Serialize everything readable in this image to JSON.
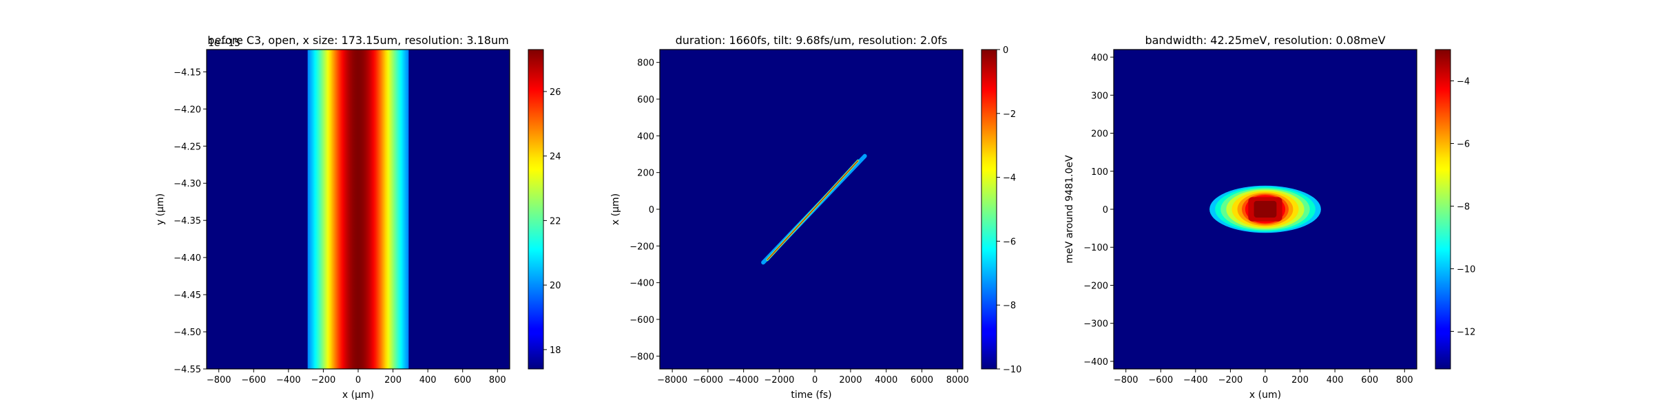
{
  "chart_data": [
    {
      "type": "heatmap",
      "title": "before C3, open, x size: 173.15um, resolution: 3.18um",
      "xlabel": "x (μm)",
      "ylabel": "y (μm)",
      "offset_text": "1e−15",
      "xlim": [
        -870,
        870
      ],
      "ylim": [
        -4.55,
        -4.12
      ],
      "xticks": [
        -800,
        -600,
        -400,
        -200,
        0,
        200,
        400,
        600,
        800
      ],
      "xtick_labels": [
        "−800",
        "−600",
        "−400",
        "−200",
        "0",
        "200",
        "400",
        "600",
        "800"
      ],
      "yticks": [
        -4.55,
        -4.5,
        -4.45,
        -4.4,
        -4.35,
        -4.3,
        -4.25,
        -4.2,
        -4.15
      ],
      "ytick_labels": [
        "−4.55",
        "−4.50",
        "−4.45",
        "−4.40",
        "−4.35",
        "−4.30",
        "−4.25",
        "−4.20",
        "−4.15"
      ],
      "colorbar": {
        "vmin": 17.4,
        "vmax": 27.3,
        "ticks": [
          18,
          20,
          22,
          24,
          26
        ],
        "tick_labels": [
          "18",
          "20",
          "22",
          "24",
          "26"
        ]
      },
      "pattern": {
        "kind": "vertical_band",
        "center": 0,
        "sigma": 175,
        "floor_value": 17.4,
        "peak_value": 27.3,
        "cutoff": 290
      }
    },
    {
      "type": "heatmap",
      "title": "duration: 1660fs, tilt: 9.68fs/um, resolution: 2.0fs",
      "xlabel": "time (fs)",
      "ylabel": "x (μm)",
      "xlim": [
        -8700,
        8300
      ],
      "ylim": [
        -870,
        870
      ],
      "xticks": [
        -8000,
        -6000,
        -4000,
        -2000,
        0,
        2000,
        4000,
        6000,
        8000
      ],
      "xtick_labels": [
        "−8000",
        "−6000",
        "−4000",
        "−2000",
        "0",
        "2000",
        "4000",
        "6000",
        "8000"
      ],
      "yticks": [
        -800,
        -600,
        -400,
        -200,
        0,
        200,
        400,
        600,
        800
      ],
      "ytick_labels": [
        "−800",
        "−600",
        "−400",
        "−200",
        "0",
        "200",
        "400",
        "600",
        "800"
      ],
      "colorbar": {
        "vmin": -10,
        "vmax": 0,
        "ticks": [
          -10,
          -8,
          -6,
          -4,
          -2,
          0
        ],
        "tick_labels": [
          "−10",
          "−8",
          "−6",
          "−4",
          "−2",
          "0"
        ]
      },
      "pattern": {
        "kind": "tilted_streak",
        "start": [
          -2900,
          -290
        ],
        "end": [
          2800,
          290
        ]
      }
    },
    {
      "type": "heatmap",
      "title": "bandwidth: 42.25meV, resolution: 0.08meV",
      "xlabel": "x (um)",
      "ylabel": "meV around 9481.0eV",
      "xlim": [
        -870,
        870
      ],
      "ylim": [
        -420,
        420
      ],
      "xticks": [
        -800,
        -600,
        -400,
        -200,
        0,
        200,
        400,
        600,
        800
      ],
      "xtick_labels": [
        "−800",
        "−600",
        "−400",
        "−200",
        "0",
        "200",
        "400",
        "600",
        "800"
      ],
      "yticks": [
        -400,
        -300,
        -200,
        -100,
        0,
        100,
        200,
        300,
        400
      ],
      "ytick_labels": [
        "−400",
        "−300",
        "−200",
        "−100",
        "0",
        "100",
        "200",
        "300",
        "400"
      ],
      "colorbar": {
        "vmin": -13.2,
        "vmax": -3.0,
        "ticks": [
          -12,
          -10,
          -8,
          -6,
          -4
        ],
        "tick_labels": [
          "−12",
          "−10",
          "−8",
          "−6",
          "−4"
        ]
      },
      "pattern": {
        "kind": "ellipse_blob",
        "center": [
          0,
          0
        ],
        "rx": 320,
        "ry": 62,
        "core_rx": 130,
        "core_ry": 40
      }
    }
  ]
}
